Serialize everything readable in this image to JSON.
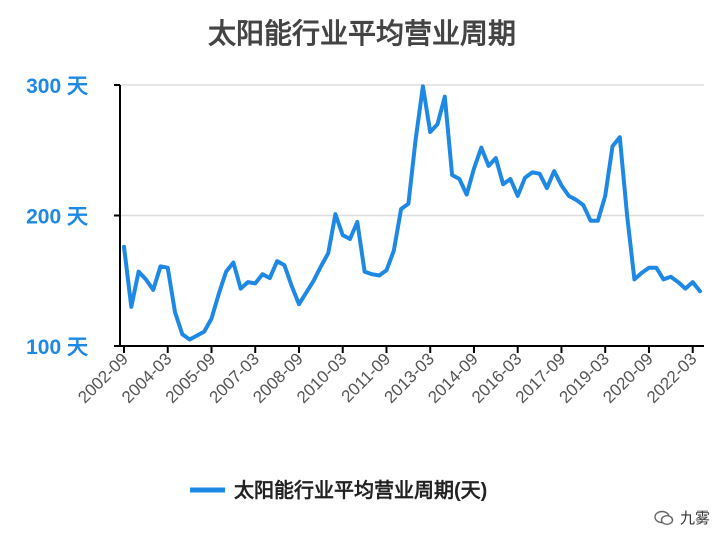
{
  "chart_data": {
    "type": "line",
    "title": "太阳能行业平均营业周期",
    "y_unit": "天",
    "ylim": [
      100,
      300
    ],
    "yticks": [
      100,
      200,
      300
    ],
    "grid": "horizontal",
    "legend_position": "bottom",
    "x_ticks": [
      "2002-09",
      "2004-03",
      "2005-09",
      "2007-03",
      "2008-09",
      "2010-03",
      "2011-09",
      "2013-03",
      "2014-09",
      "2016-03",
      "2017-09",
      "2019-03",
      "2020-09",
      "2022-03"
    ],
    "series": [
      {
        "name": "太阳能行业平均营业周期(天)",
        "color": "#1e88e5",
        "x": [
          "2002-09",
          "2002-12",
          "2003-03",
          "2003-06",
          "2003-09",
          "2003-12",
          "2004-03",
          "2004-06",
          "2004-09",
          "2004-12",
          "2005-03",
          "2005-06",
          "2005-09",
          "2005-12",
          "2006-03",
          "2006-06",
          "2006-09",
          "2006-12",
          "2007-03",
          "2007-06",
          "2007-09",
          "2007-12",
          "2008-03",
          "2008-06",
          "2008-09",
          "2008-12",
          "2009-03",
          "2009-06",
          "2009-09",
          "2009-12",
          "2010-03",
          "2010-06",
          "2010-09",
          "2010-12",
          "2011-03",
          "2011-06",
          "2011-09",
          "2011-12",
          "2012-03",
          "2012-06",
          "2012-09",
          "2012-12",
          "2013-03",
          "2013-06",
          "2013-09",
          "2013-12",
          "2014-03",
          "2014-06",
          "2014-09",
          "2014-12",
          "2015-03",
          "2015-06",
          "2015-09",
          "2015-12",
          "2016-03",
          "2016-06",
          "2016-09",
          "2016-12",
          "2017-03",
          "2017-06",
          "2017-09",
          "2017-12",
          "2018-03",
          "2018-06",
          "2018-09",
          "2018-12",
          "2019-03",
          "2019-06",
          "2019-09",
          "2019-12",
          "2020-03",
          "2020-06",
          "2020-09",
          "2020-12",
          "2021-03",
          "2021-06",
          "2021-09",
          "2021-12",
          "2022-03",
          "2022-06"
        ],
        "values": [
          176,
          130,
          157,
          151,
          143,
          161,
          160,
          126,
          109,
          105,
          108,
          111,
          121,
          140,
          157,
          164,
          144,
          149,
          148,
          155,
          152,
          165,
          162,
          146,
          132,
          141,
          150,
          161,
          171,
          201,
          185,
          182,
          195,
          157,
          155,
          154,
          158,
          173,
          205,
          209,
          258,
          299,
          264,
          270,
          291,
          231,
          228,
          216,
          236,
          252,
          238,
          244,
          224,
          228,
          215,
          229,
          233,
          232,
          221,
          234,
          223,
          215,
          212,
          208,
          196,
          196,
          215,
          253,
          260,
          200,
          151,
          156,
          160,
          160,
          151,
          153,
          149,
          144,
          149,
          142
        ]
      }
    ]
  },
  "watermark": {
    "text": "九雾",
    "icon": "wechat-icon"
  }
}
